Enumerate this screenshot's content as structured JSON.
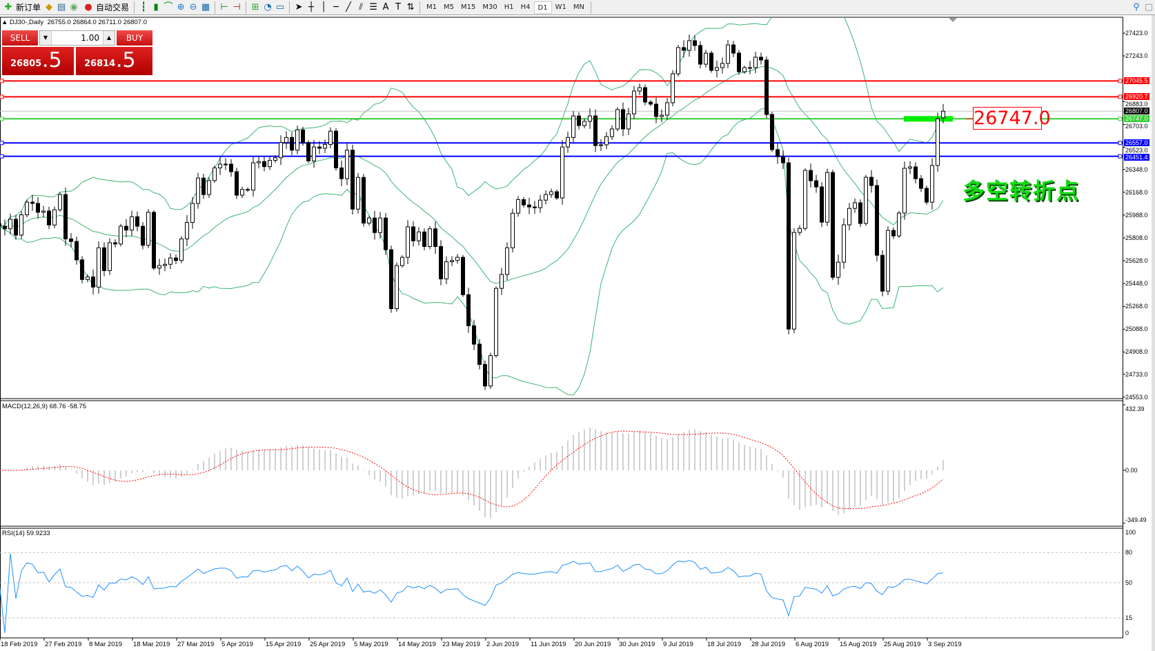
{
  "toolbar": {
    "new_order": "新订单",
    "auto_trading": "自动交易",
    "timeframes": [
      "M1",
      "M5",
      "M15",
      "M30",
      "H1",
      "H4",
      "D1",
      "W1",
      "MN"
    ],
    "active_timeframe": "D1",
    "icons": [
      "new-order-icon",
      "gold-icon",
      "history-icon",
      "signal-icon",
      "auto-trading-icon",
      "bar-chart-icon",
      "candlestick-icon",
      "line-chart-icon",
      "zoom-in-icon",
      "zoom-out-icon",
      "tile-windows-icon",
      "chart-shift-icon",
      "autoscroll-icon",
      "indicators-icon",
      "periods-clock-icon",
      "templates-icon",
      "cursor-icon",
      "crosshair-icon",
      "vertical-line-icon",
      "horizontal-line-icon",
      "trendline-icon",
      "equidistant-channel-icon",
      "fibonacci-icon",
      "text-icon",
      "text-label-icon",
      "arrows-icon",
      "search-icon",
      "chat-icon"
    ]
  },
  "header": {
    "symbol": "DJ30-,Daily",
    "ohlc": "26755.0 26864.0 26711.0 26807.0",
    "open": 26755.0,
    "high": 26864.0,
    "low": 26711.0,
    "close": 26807.0
  },
  "trade": {
    "sell_label": "SELL",
    "buy_label": "BUY",
    "lots": "1.00",
    "sell_main": "26805",
    "sell_frac": ".5",
    "buy_main": "26814",
    "buy_frac": ".5"
  },
  "price_axis": [
    "27423.0",
    "27243.0",
    "26883.0",
    "26703.0",
    "26523.0",
    "26348.0",
    "26168.0",
    "25988.0",
    "25808.0",
    "25628.0",
    "25448.0",
    "25268.0",
    "25088.0",
    "24908.0",
    "24733.0",
    "24553.0"
  ],
  "hlines": [
    {
      "price": 27045.5,
      "label": "27045.5",
      "color": "#ff0000"
    },
    {
      "price": 26920.7,
      "label": "26920.7",
      "color": "#ff0000"
    },
    {
      "price": 26747.0,
      "label": "26747.0",
      "color": "#33cc33"
    },
    {
      "price": 26557.0,
      "label": "26557.0",
      "color": "#0000ff"
    },
    {
      "price": 26451.4,
      "label": "26451.4",
      "color": "#0000ff"
    }
  ],
  "current_price": {
    "price": 26807.0,
    "label": "26807.0"
  },
  "annotation": {
    "price_text": "26747.0",
    "note": "多空转折点",
    "note_color": "#11dd11"
  },
  "macd": {
    "label": "MACD(12,26,9) 68.76 -58.75",
    "axis": [
      "432.39",
      "0.00",
      "-349.49"
    ]
  },
  "rsi": {
    "label": "RSI(14) 59.9233",
    "axis": [
      "100",
      "80",
      "50",
      "15",
      "0"
    ],
    "levels": [
      80,
      50,
      15
    ]
  },
  "dates": [
    "18 Feb 2019",
    "27 Feb 2019",
    "8 Mar 2019",
    "18 Mar 2019",
    "27 Mar 2019",
    "5 Apr 2019",
    "15 Apr 2019",
    "25 Apr 2019",
    "5 May 2019",
    "14 May 2019",
    "23 May 2019",
    "2 Jun 2019",
    "11 Jun 2019",
    "20 Jun 2019",
    "30 Jun 2019",
    "9 Jul 2019",
    "18 Jul 2019",
    "28 Jul 2019",
    "6 Aug 2019",
    "15 Aug 2019",
    "25 Aug 2019",
    "3 Sep 2019"
  ],
  "closes": [
    25900,
    25880,
    25955,
    25830,
    25990,
    26090,
    26080,
    26010,
    26020,
    25910,
    26030,
    26150,
    25800,
    25780,
    25635,
    25480,
    25500,
    25420,
    25730,
    25550,
    25770,
    25760,
    25900,
    25870,
    25975,
    25900,
    25750,
    26010,
    25570,
    25590,
    25600,
    25650,
    25630,
    25800,
    25930,
    26080,
    26280,
    26150,
    26260,
    26360,
    26390,
    26390,
    26330,
    26145,
    26190,
    26185,
    26400,
    26410,
    26370,
    26420,
    26440,
    26560,
    26600,
    26500,
    26660,
    26560,
    26415,
    26525,
    26515,
    26545,
    26650,
    26360,
    26275,
    26500,
    26035,
    26285,
    25925,
    25965,
    25850,
    25965,
    25715,
    25250,
    25590,
    25655,
    25895,
    25785,
    25855,
    25740,
    25880,
    25740,
    25485,
    25620,
    25630,
    25655,
    25360,
    25115,
    24970,
    24810,
    24640,
    24880,
    25410,
    25520,
    25730,
    26003,
    26110,
    26068,
    26052,
    26046,
    26106,
    26150,
    26172,
    26123,
    26525,
    26600,
    26770,
    26694,
    26727,
    26770,
    26536,
    26542,
    26607,
    26667,
    26820,
    26667,
    26786,
    26966,
    26993,
    26879,
    26863,
    26765,
    26776,
    26874,
    27102,
    27309,
    27287,
    27363,
    27325,
    27178,
    27265,
    27129,
    27151,
    27184,
    27330,
    27265,
    27118,
    27151,
    27151,
    27233,
    27211,
    26781,
    26504,
    26449,
    26400,
    25089,
    25851,
    25883,
    26340,
    26259,
    26210,
    25932,
    26324,
    25497,
    25617,
    25911,
    26041,
    26085,
    25922,
    26286,
    26221,
    25671,
    25388,
    25867,
    25824,
    26004,
    26357,
    26368,
    26275,
    26199,
    26090,
    26379,
    26747,
    26807
  ],
  "colors": {
    "bull_body": "#ffffff",
    "bear_body": "#000000",
    "bands": "#3cb371",
    "macd_hist": "#c0c0c0",
    "macd_signal": "#ff0000",
    "rsi": "#1e90ff",
    "sell_buy": "#d01818"
  }
}
